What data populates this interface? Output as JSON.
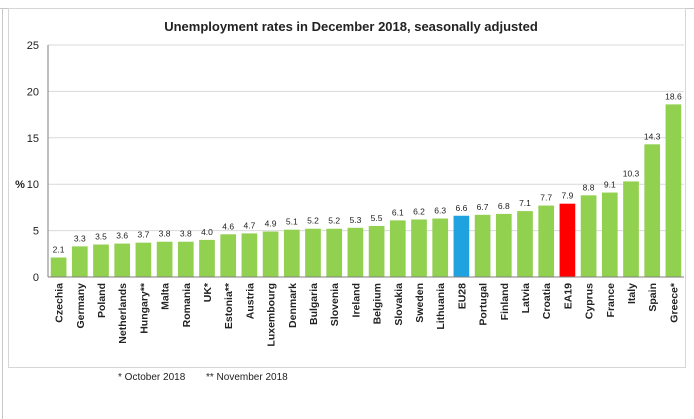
{
  "chart_data": {
    "type": "bar",
    "title": "Unemployment rates in December 2018, seasonally adjusted",
    "ylabel": "%",
    "xlabel": "",
    "ylim": [
      0,
      25
    ],
    "yticks": [
      0,
      5,
      10,
      15,
      20,
      25
    ],
    "grid": true,
    "legend": "none",
    "categories": [
      "Czechia",
      "Germany",
      "Poland",
      "Netherlands",
      "Hungary**",
      "Malta",
      "Romania",
      "UK*",
      "Estonia**",
      "Austria",
      "Luxembourg",
      "Denmark",
      "Bulgaria",
      "Slovenia",
      "Ireland",
      "Belgium",
      "Slovakia",
      "Sweden",
      "Lithuania",
      "EU28",
      "Portugal",
      "Finland",
      "Latvia",
      "Croatia",
      "EA19",
      "Cyprus",
      "France",
      "Italy",
      "Spain",
      "Greece*"
    ],
    "values": [
      2.1,
      3.3,
      3.5,
      3.6,
      3.7,
      3.8,
      3.8,
      4.0,
      4.6,
      4.7,
      4.9,
      5.1,
      5.2,
      5.2,
      5.3,
      5.5,
      6.1,
      6.2,
      6.3,
      6.6,
      6.7,
      6.8,
      7.1,
      7.7,
      7.9,
      8.8,
      9.1,
      10.3,
      14.3,
      18.6
    ],
    "value_labels": [
      "2.1",
      "3.3",
      "3.5",
      "3.6",
      "3.7",
      "3.8",
      "3.8",
      "4.0",
      "4.6",
      "4.7",
      "4.9",
      "5.1",
      "5.2",
      "5.2",
      "5.3",
      "5.5",
      "6.1",
      "6.2",
      "6.3",
      "6.6",
      "6.7",
      "6.8",
      "7.1",
      "7.7",
      "7.9",
      "8.8",
      "9.1",
      "10.3",
      "14.3",
      "18.6"
    ],
    "colors": {
      "default": "#92d050",
      "EU28": "#1fa2e0",
      "EA19": "#ff0000",
      "grid": "#d9d9d9",
      "axis": "#7f7f7f"
    }
  },
  "footnotes": {
    "note1": "* October 2018",
    "note2": "** November 2018"
  }
}
